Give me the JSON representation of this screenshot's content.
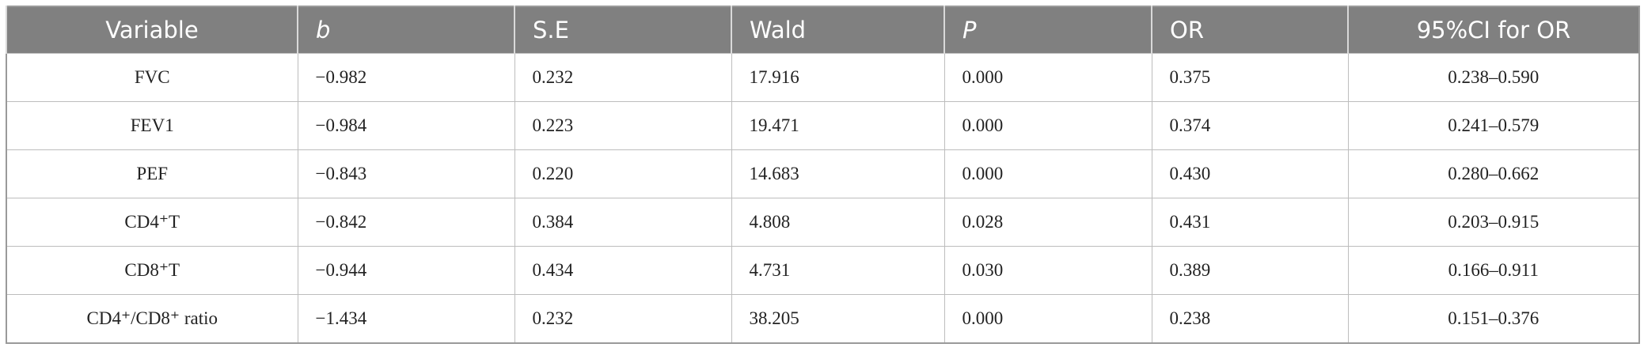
{
  "table": {
    "header": [
      "Variable",
      "b",
      "S.E",
      "Wald",
      "P",
      "OR",
      "95%CI for OR"
    ],
    "rows": [
      [
        "FVC",
        "−0.982",
        "0.232",
        "17.916",
        "0.000",
        "0.375",
        "0.238–0.590"
      ],
      [
        "FEV1",
        "−0.984",
        "0.223",
        "19.471",
        "0.000",
        "0.374",
        "0.241–0.579"
      ],
      [
        "PEF",
        "−0.843",
        "0.220",
        "14.683",
        "0.000",
        "0.430",
        "0.280–0.662"
      ],
      [
        "CD4⁺T",
        "−0.842",
        "0.384",
        "4.808",
        "0.028",
        "0.431",
        "0.203–0.915"
      ],
      [
        "CD8⁺T",
        "−0.944",
        "0.434",
        "4.731",
        "0.030",
        "0.389",
        "0.166–0.911"
      ],
      [
        "CD4⁺/CD8⁺ ratio",
        "−1.434",
        "0.232",
        "38.205",
        "0.000",
        "0.238",
        "0.151–0.376"
      ]
    ]
  }
}
